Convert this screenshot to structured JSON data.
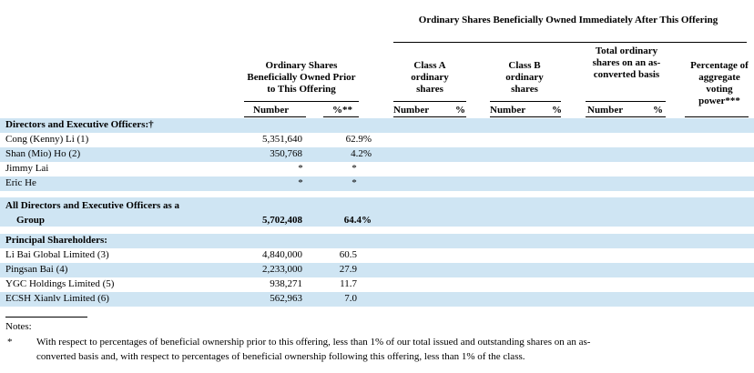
{
  "header": {
    "after_offering": "Ordinary Shares Beneficially Owned Immediately After This Offering",
    "prior": "Ordinary Shares Beneficially Owned Prior to This Offering",
    "class_a": "Class A ordinary shares",
    "class_b": "Class B ordinary shares",
    "total": "Total ordinary shares on an as-converted basis",
    "percentage": "Percentage of aggregate voting power***",
    "number": "Number",
    "pct_prior": "%**",
    "pct": "%"
  },
  "sections": {
    "directors": "Directors and Executive Officers:†",
    "all_directors_line1": "All Directors and Executive Officers as a",
    "all_directors_line2": "Group",
    "principal": "Principal Shareholders:"
  },
  "rows": [
    {
      "name": "Cong (Kenny) Li (1)",
      "number": "5,351,640",
      "percent": "62.9%"
    },
    {
      "name": "Shan (Mio) Ho (2)",
      "number": "350,768",
      "percent": "4.2%"
    },
    {
      "name": "Jimmy Lai",
      "number": "*",
      "percent": "*"
    },
    {
      "name": "Eric He",
      "number": "*",
      "percent": "*"
    }
  ],
  "group_total": {
    "number": "5,702,408",
    "percent": "64.4%"
  },
  "principal_rows": [
    {
      "name": "Li Bai Global Limited (3)",
      "number": "4,840,000",
      "percent": "60.5"
    },
    {
      "name": "Pingsan Bai (4)",
      "number": "2,233,000",
      "percent": "27.9"
    },
    {
      "name": "YGC Holdings Limited (5)",
      "number": "938,271",
      "percent": "11.7"
    },
    {
      "name": "ECSH Xianlv Limited (6)",
      "number": "562,963",
      "percent": "7.0"
    }
  ],
  "notes": {
    "label": "Notes:",
    "star": "*",
    "text_line1": "With respect to percentages of beneficial ownership prior to this offering, less than 1% of our total issued and outstanding shares on an as-",
    "text_line2": "converted basis and, with respect to percentages of beneficial ownership following this offering, less than 1% of the class."
  }
}
